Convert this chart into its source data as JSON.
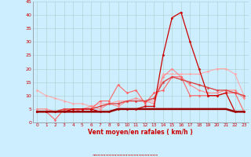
{
  "x": [
    0,
    1,
    2,
    3,
    4,
    5,
    6,
    7,
    8,
    9,
    10,
    11,
    12,
    13,
    14,
    15,
    16,
    17,
    18,
    19,
    20,
    21,
    22,
    23
  ],
  "lines": [
    {
      "y": [
        12,
        10,
        9,
        8,
        7,
        7,
        6,
        7,
        7,
        8,
        8,
        8,
        8,
        8,
        18,
        18,
        18,
        18,
        18,
        19,
        20,
        20,
        18,
        10
      ],
      "color": "#ffaaaa",
      "lw": 0.8,
      "marker": "D",
      "ms": 1.5
    },
    {
      "y": [
        5,
        5,
        4,
        5,
        5,
        5,
        6,
        5,
        7,
        6,
        8,
        9,
        8,
        7,
        17,
        20,
        17,
        14,
        12,
        11,
        11,
        12,
        12,
        9
      ],
      "color": "#ff8888",
      "lw": 0.8,
      "marker": "D",
      "ms": 1.5
    },
    {
      "y": [
        4,
        4,
        1,
        5,
        4,
        5,
        5,
        8,
        8,
        14,
        11,
        12,
        7,
        11,
        12,
        17,
        17,
        10,
        10,
        10,
        10,
        11,
        11,
        4
      ],
      "color": "#ff6666",
      "lw": 0.8,
      "marker": "D",
      "ms": 1.5
    },
    {
      "y": [
        4,
        4,
        4,
        5,
        5,
        5,
        5,
        6,
        7,
        7,
        8,
        8,
        8,
        9,
        15,
        17,
        16,
        15,
        14,
        13,
        12,
        12,
        11,
        10
      ],
      "color": "#dd4444",
      "lw": 1.0,
      "marker": "D",
      "ms": 1.5
    },
    {
      "y": [
        4,
        4,
        4,
        4,
        5,
        5,
        5,
        4,
        4,
        5,
        5,
        5,
        6,
        6,
        25,
        39,
        41,
        30,
        20,
        10,
        10,
        11,
        4,
        4
      ],
      "color": "#cc0000",
      "lw": 0.9,
      "marker": "D",
      "ms": 1.5
    },
    {
      "y": [
        4,
        4,
        4,
        4,
        4,
        4,
        4,
        4,
        4,
        5,
        5,
        5,
        5,
        5,
        5,
        5,
        5,
        5,
        5,
        5,
        5,
        5,
        4,
        4
      ],
      "color": "#990000",
      "lw": 1.8,
      "marker": null,
      "ms": 0
    }
  ],
  "ylim": [
    0,
    45
  ],
  "yticks": [
    0,
    5,
    10,
    15,
    20,
    25,
    30,
    35,
    40,
    45
  ],
  "xticks": [
    0,
    1,
    2,
    3,
    4,
    5,
    6,
    7,
    8,
    9,
    10,
    11,
    12,
    13,
    14,
    15,
    16,
    17,
    18,
    19,
    20,
    21,
    22,
    23
  ],
  "xlabel": "Vent moyen/en rafales ( km/h )",
  "bg_color": "#cceeff",
  "grid_color": "#aacccc",
  "tick_color": "#cc0000",
  "xlabel_color": "#cc0000",
  "spine_color": "#888888"
}
